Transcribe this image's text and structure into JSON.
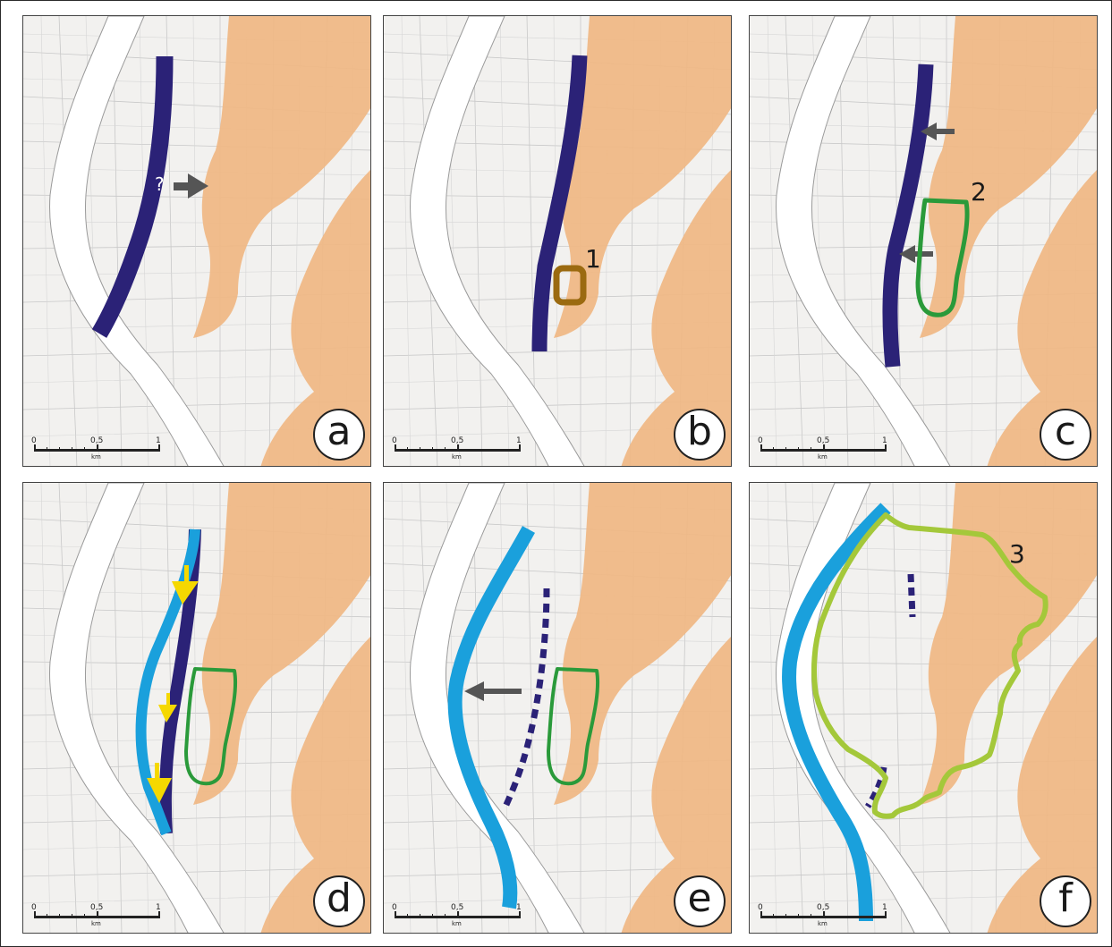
{
  "figure": {
    "panels": [
      {
        "id": "a",
        "label": "a"
      },
      {
        "id": "b",
        "label": "b"
      },
      {
        "id": "c",
        "label": "c"
      },
      {
        "id": "d",
        "label": "d"
      },
      {
        "id": "e",
        "label": "e"
      },
      {
        "id": "f",
        "label": "f"
      }
    ],
    "scale_bar": {
      "tick_0": "0",
      "tick_mid": "0,5",
      "tick_end": "1",
      "unit": "km"
    },
    "annotations": {
      "question_mark": "?",
      "zone_1": "1",
      "zone_2": "2",
      "zone_3": "3"
    }
  },
  "colors": {
    "old_wall_navy": "#2b2277",
    "new_wall_lightblue": "#1aa0dc",
    "historic_core_orange": "#f0b783",
    "zone1_brown": "#9b6a10",
    "zone2_green": "#2a9a3a",
    "zone3_limegreen": "#a4c83a",
    "river_white": "#ffffff",
    "arrow_grey": "#555555",
    "arrow_yellow": "#f5d800",
    "map_background": "#f2f1ef",
    "street_lines": "#b8b8b8"
  },
  "legend_semantics": {
    "navy_band": "old wall line",
    "light_blue_band": "new wall line",
    "orange_areas": "historic core / elevated terrain"
  }
}
